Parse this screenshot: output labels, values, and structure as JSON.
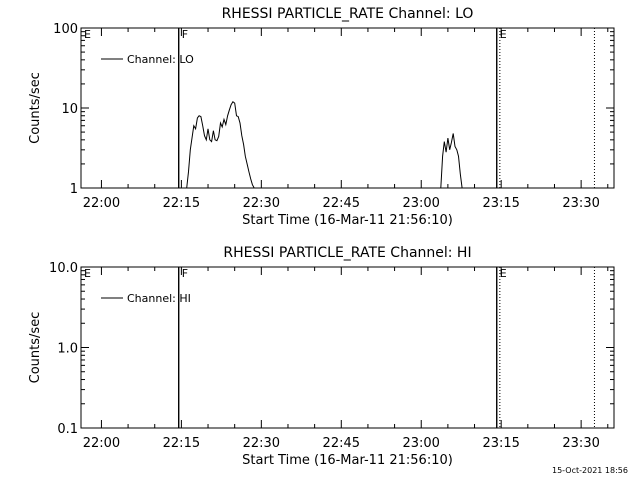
{
  "footer_timestamp": "15-Oct-2021 18:56",
  "chart_data": [
    {
      "type": "line",
      "title": "RHESSI PARTICLE_RATE Channel: LO",
      "ylabel": "Counts/sec",
      "xlabel": "Start Time (16-Mar-11 21:56:10)",
      "y_scale": "log",
      "ylim": [
        1,
        100
      ],
      "y_ticks": [
        "1",
        "10",
        "100"
      ],
      "xlim": [
        "21:56:10",
        "23:36:10"
      ],
      "x_ticks": [
        "22:00",
        "22:15",
        "22:30",
        "22:45",
        "23:00",
        "23:15",
        "23:30"
      ],
      "grid": false,
      "legend": {
        "position": "top-left",
        "label": "Channel: LO"
      },
      "markers": [
        {
          "label": "E",
          "time": "21:56:10",
          "style": "none"
        },
        {
          "label": "F",
          "time": "22:14:30",
          "style": "solid"
        },
        {
          "label": "E",
          "time": "23:14:10",
          "style": "solid"
        },
        {
          "label": "",
          "time": "23:14:45",
          "style": "dotted"
        },
        {
          "label": "",
          "time": "23:32:30",
          "style": "dotted"
        }
      ],
      "series": [
        {
          "name": "Channel: LO",
          "segments": [
            {
              "x": [
                "22:16:00",
                "22:16:20",
                "22:16:40",
                "22:17:00",
                "22:17:20",
                "22:17:40",
                "22:18:00",
                "22:18:20",
                "22:18:40",
                "22:19:00",
                "22:19:20",
                "22:19:40",
                "22:20:00",
                "22:20:20",
                "22:20:40",
                "22:21:00",
                "22:21:20",
                "22:21:40",
                "22:22:00",
                "22:22:20",
                "22:22:40",
                "22:23:00",
                "22:23:20",
                "22:23:40",
                "22:24:00",
                "22:24:20",
                "22:24:40",
                "22:25:00",
                "22:25:20",
                "22:25:40",
                "22:26:00",
                "22:26:20",
                "22:26:40",
                "22:27:00",
                "22:27:20",
                "22:27:40",
                "22:28:00",
                "22:28:20",
                "22:28:40",
                "22:29:00",
                "22:29:20"
              ],
              "y": [
                1.0,
                1.6,
                3.0,
                4.2,
                6.0,
                5.5,
                7.5,
                8.0,
                7.8,
                6.0,
                4.5,
                4.0,
                5.5,
                4.0,
                3.8,
                5.2,
                4.0,
                3.9,
                4.4,
                6.5,
                5.8,
                7.2,
                6.2,
                8.0,
                9.5,
                11.0,
                12.0,
                11.5,
                8.0,
                7.8,
                6.5,
                4.5,
                3.5,
                2.5,
                2.0,
                1.6,
                1.3,
                1.1,
                1.0,
                1.0,
                1.0
              ]
            },
            {
              "x": [
                "23:03:40",
                "23:04:00",
                "23:04:20",
                "23:04:40",
                "23:05:00",
                "23:05:20",
                "23:05:40",
                "23:06:00",
                "23:06:20",
                "23:06:40",
                "23:07:00",
                "23:07:20",
                "23:07:40"
              ],
              "y": [
                1.0,
                2.5,
                3.8,
                2.8,
                4.2,
                3.0,
                3.7,
                4.8,
                3.3,
                3.0,
                2.5,
                1.5,
                1.0
              ]
            }
          ]
        }
      ]
    },
    {
      "type": "line",
      "title": "RHESSI PARTICLE_RATE Channel: HI",
      "ylabel": "Counts/sec",
      "xlabel": "Start Time (16-Mar-11 21:56:10)",
      "y_scale": "log",
      "ylim": [
        0.1,
        10
      ],
      "y_ticks": [
        "0.1",
        "1.0",
        "10.0"
      ],
      "xlim": [
        "21:56:10",
        "23:36:10"
      ],
      "x_ticks": [
        "22:00",
        "22:15",
        "22:30",
        "22:45",
        "23:00",
        "23:15",
        "23:30"
      ],
      "grid": false,
      "legend": {
        "position": "top-left",
        "label": "Channel: HI"
      },
      "markers": [
        {
          "label": "E",
          "time": "21:56:10",
          "style": "none"
        },
        {
          "label": "F",
          "time": "22:14:30",
          "style": "solid"
        },
        {
          "label": "E",
          "time": "23:14:10",
          "style": "solid"
        },
        {
          "label": "",
          "time": "23:14:45",
          "style": "dotted"
        },
        {
          "label": "",
          "time": "23:32:30",
          "style": "dotted"
        }
      ],
      "series": [
        {
          "name": "Channel: HI",
          "segments": []
        }
      ]
    }
  ]
}
